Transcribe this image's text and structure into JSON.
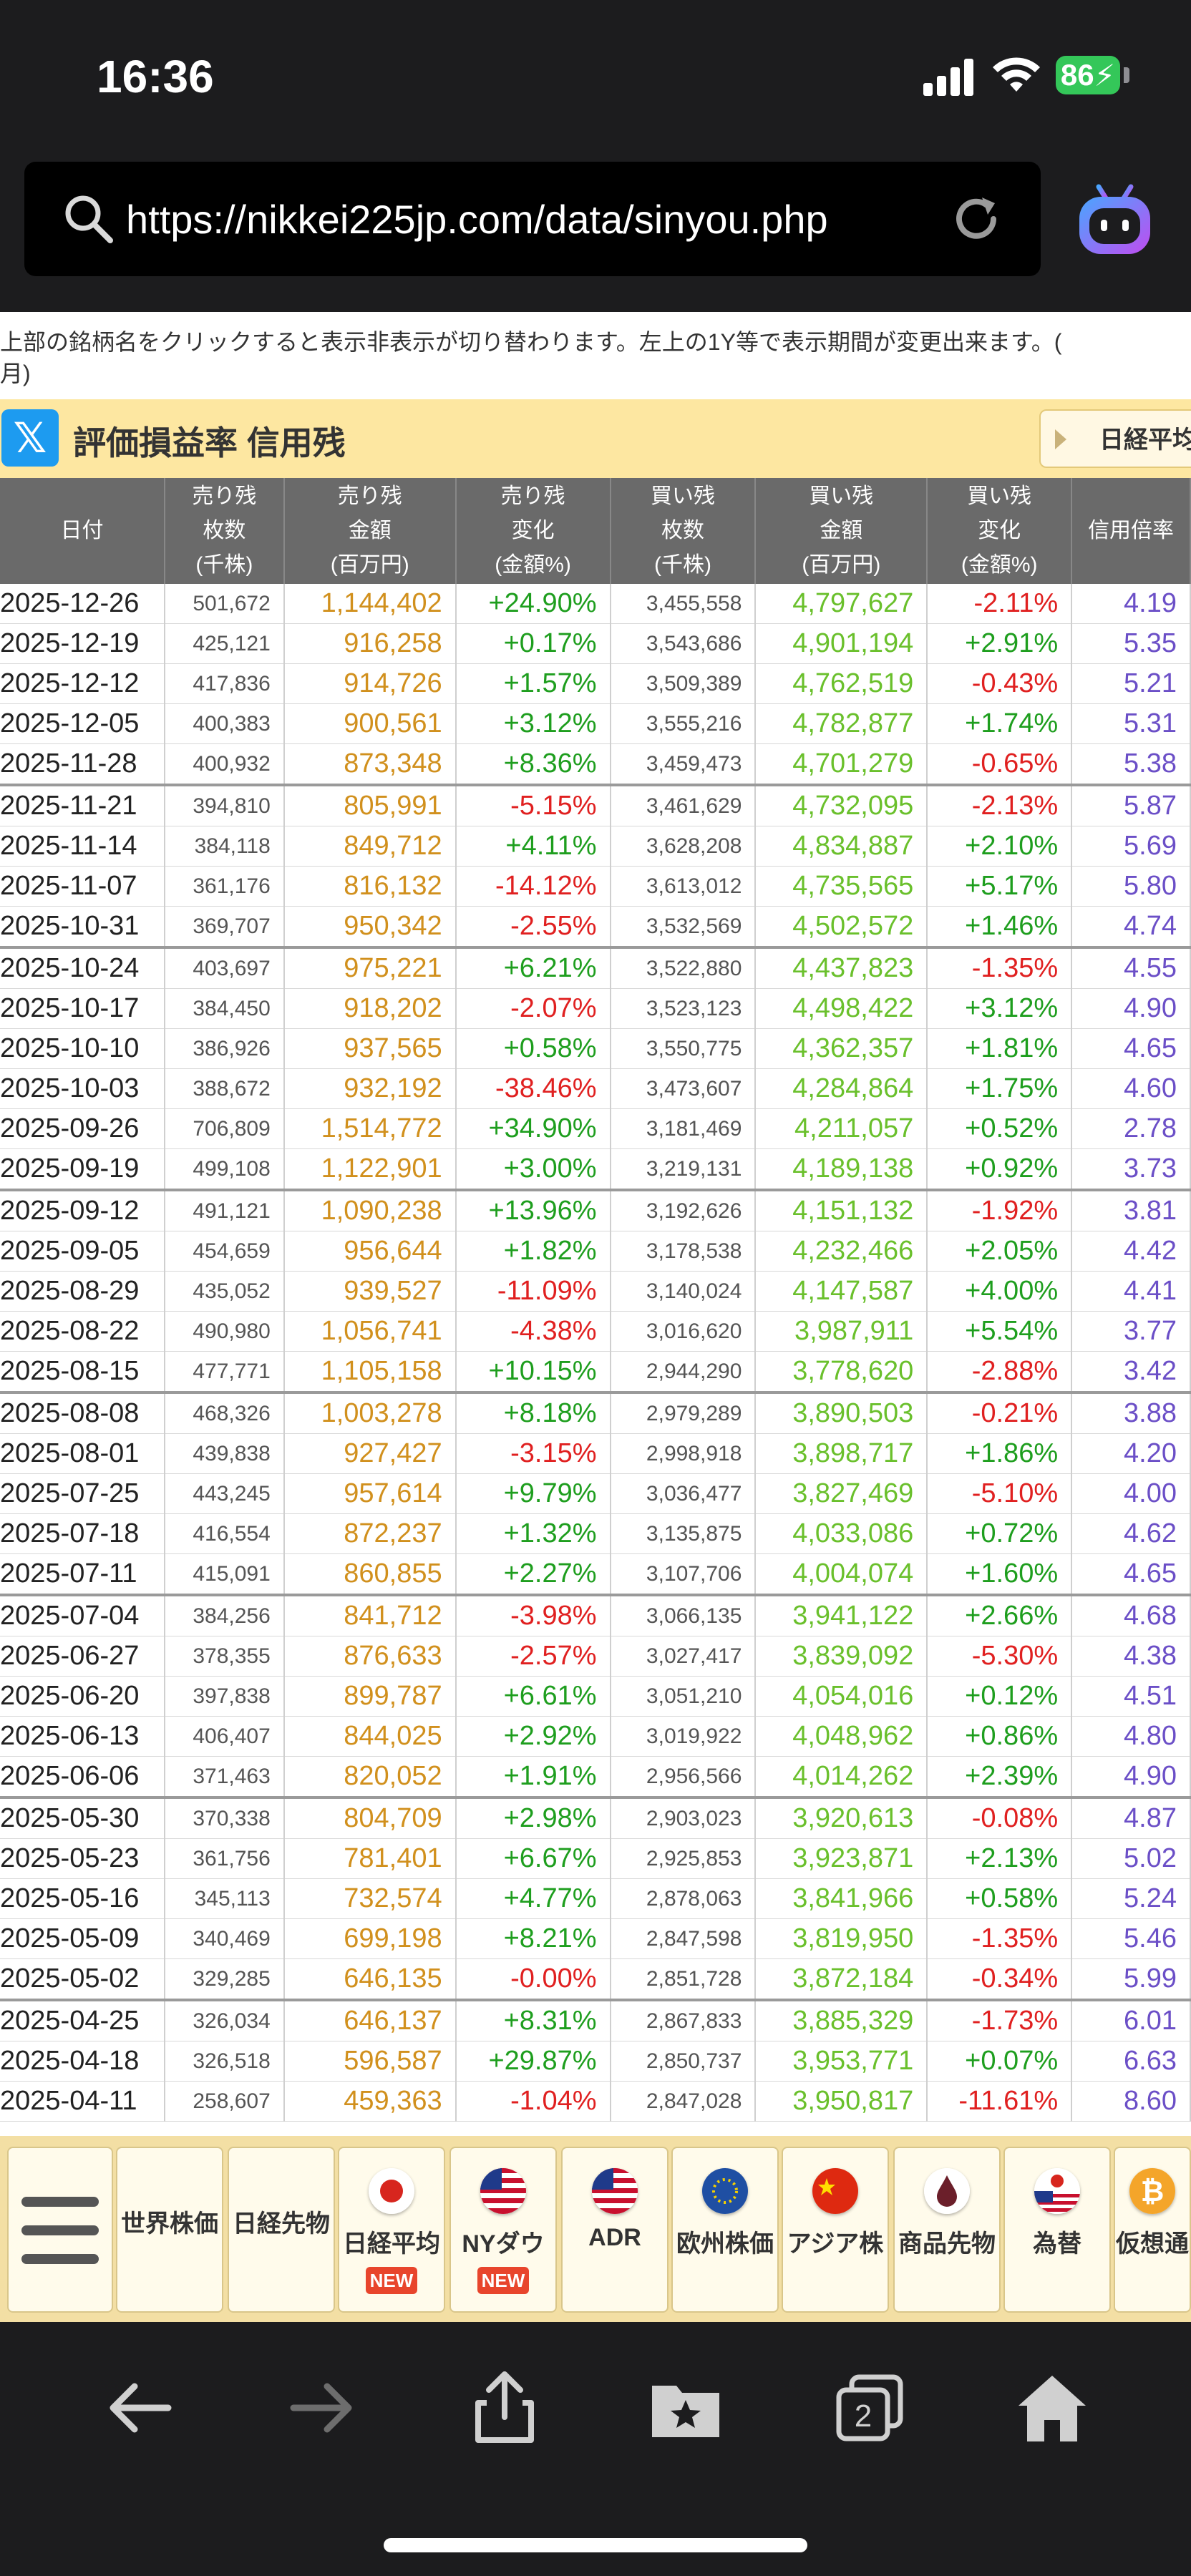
{
  "status": {
    "time": "16:36",
    "battery": "86"
  },
  "browser": {
    "url": "https://nikkei225jp.com/data/sinyou.php"
  },
  "notice": "上部の銘柄名をクリックすると表示非表示が切り替わります。左上の1Y等で表示期間が変更出来ます。(",
  "notice2": "月)",
  "heading": "評価損益率 信用残",
  "tab_label": "日経平均",
  "columns": [
    {
      "l1": "日付",
      "l2": "",
      "l3": ""
    },
    {
      "l1": "売り残",
      "l2": "枚数",
      "l3": "(千株)"
    },
    {
      "l1": "売り残",
      "l2": "金額",
      "l3": "(百万円)"
    },
    {
      "l1": "売り残",
      "l2": "変化",
      "l3": "(金額%)"
    },
    {
      "l1": "買い残",
      "l2": "枚数",
      "l3": "(千株)"
    },
    {
      "l1": "買い残",
      "l2": "金額",
      "l3": "(百万円)"
    },
    {
      "l1": "買い残",
      "l2": "変化",
      "l3": "(金額%)"
    },
    {
      "l1": "信用倍率",
      "l2": "",
      "l3": ""
    }
  ],
  "rows": [
    [
      "2025-12-26",
      "501,672",
      "1,144,402",
      "+24.90%",
      "3,455,558",
      "4,797,627",
      "-2.11%",
      "4.19"
    ],
    [
      "2025-12-19",
      "425,121",
      "916,258",
      "+0.17%",
      "3,543,686",
      "4,901,194",
      "+2.91%",
      "5.35"
    ],
    [
      "2025-12-12",
      "417,836",
      "914,726",
      "+1.57%",
      "3,509,389",
      "4,762,519",
      "-0.43%",
      "5.21"
    ],
    [
      "2025-12-05",
      "400,383",
      "900,561",
      "+3.12%",
      "3,555,216",
      "4,782,877",
      "+1.74%",
      "5.31"
    ],
    [
      "2025-11-28",
      "400,932",
      "873,348",
      "+8.36%",
      "3,459,473",
      "4,701,279",
      "-0.65%",
      "5.38"
    ],
    [
      "2025-11-21",
      "394,810",
      "805,991",
      "-5.15%",
      "3,461,629",
      "4,732,095",
      "-2.13%",
      "5.87"
    ],
    [
      "2025-11-14",
      "384,118",
      "849,712",
      "+4.11%",
      "3,628,208",
      "4,834,887",
      "+2.10%",
      "5.69"
    ],
    [
      "2025-11-07",
      "361,176",
      "816,132",
      "-14.12%",
      "3,613,012",
      "4,735,565",
      "+5.17%",
      "5.80"
    ],
    [
      "2025-10-31",
      "369,707",
      "950,342",
      "-2.55%",
      "3,532,569",
      "4,502,572",
      "+1.46%",
      "4.74"
    ],
    [
      "2025-10-24",
      "403,697",
      "975,221",
      "+6.21%",
      "3,522,880",
      "4,437,823",
      "-1.35%",
      "4.55"
    ],
    [
      "2025-10-17",
      "384,450",
      "918,202",
      "-2.07%",
      "3,523,123",
      "4,498,422",
      "+3.12%",
      "4.90"
    ],
    [
      "2025-10-10",
      "386,926",
      "937,565",
      "+0.58%",
      "3,550,775",
      "4,362,357",
      "+1.81%",
      "4.65"
    ],
    [
      "2025-10-03",
      "388,672",
      "932,192",
      "-38.46%",
      "3,473,607",
      "4,284,864",
      "+1.75%",
      "4.60"
    ],
    [
      "2025-09-26",
      "706,809",
      "1,514,772",
      "+34.90%",
      "3,181,469",
      "4,211,057",
      "+0.52%",
      "2.78"
    ],
    [
      "2025-09-19",
      "499,108",
      "1,122,901",
      "+3.00%",
      "3,219,131",
      "4,189,138",
      "+0.92%",
      "3.73"
    ],
    [
      "2025-09-12",
      "491,121",
      "1,090,238",
      "+13.96%",
      "3,192,626",
      "4,151,132",
      "-1.92%",
      "3.81"
    ],
    [
      "2025-09-05",
      "454,659",
      "956,644",
      "+1.82%",
      "3,178,538",
      "4,232,466",
      "+2.05%",
      "4.42"
    ],
    [
      "2025-08-29",
      "435,052",
      "939,527",
      "-11.09%",
      "3,140,024",
      "4,147,587",
      "+4.00%",
      "4.41"
    ],
    [
      "2025-08-22",
      "490,980",
      "1,056,741",
      "-4.38%",
      "3,016,620",
      "3,987,911",
      "+5.54%",
      "3.77"
    ],
    [
      "2025-08-15",
      "477,771",
      "1,105,158",
      "+10.15%",
      "2,944,290",
      "3,778,620",
      "-2.88%",
      "3.42"
    ],
    [
      "2025-08-08",
      "468,326",
      "1,003,278",
      "+8.18%",
      "2,979,289",
      "3,890,503",
      "-0.21%",
      "3.88"
    ],
    [
      "2025-08-01",
      "439,838",
      "927,427",
      "-3.15%",
      "2,998,918",
      "3,898,717",
      "+1.86%",
      "4.20"
    ],
    [
      "2025-07-25",
      "443,245",
      "957,614",
      "+9.79%",
      "3,036,477",
      "3,827,469",
      "-5.10%",
      "4.00"
    ],
    [
      "2025-07-18",
      "416,554",
      "872,237",
      "+1.32%",
      "3,135,875",
      "4,033,086",
      "+0.72%",
      "4.62"
    ],
    [
      "2025-07-11",
      "415,091",
      "860,855",
      "+2.27%",
      "3,107,706",
      "4,004,074",
      "+1.60%",
      "4.65"
    ],
    [
      "2025-07-04",
      "384,256",
      "841,712",
      "-3.98%",
      "3,066,135",
      "3,941,122",
      "+2.66%",
      "4.68"
    ],
    [
      "2025-06-27",
      "378,355",
      "876,633",
      "-2.57%",
      "3,027,417",
      "3,839,092",
      "-5.30%",
      "4.38"
    ],
    [
      "2025-06-20",
      "397,838",
      "899,787",
      "+6.61%",
      "3,051,210",
      "4,054,016",
      "+0.12%",
      "4.51"
    ],
    [
      "2025-06-13",
      "406,407",
      "844,025",
      "+2.92%",
      "3,019,922",
      "4,048,962",
      "+0.86%",
      "4.80"
    ],
    [
      "2025-06-06",
      "371,463",
      "820,052",
      "+1.91%",
      "2,956,566",
      "4,014,262",
      "+2.39%",
      "4.90"
    ],
    [
      "2025-05-30",
      "370,338",
      "804,709",
      "+2.98%",
      "2,903,023",
      "3,920,613",
      "-0.08%",
      "4.87"
    ],
    [
      "2025-05-23",
      "361,756",
      "781,401",
      "+6.67%",
      "2,925,853",
      "3,923,871",
      "+2.13%",
      "5.02"
    ],
    [
      "2025-05-16",
      "345,113",
      "732,574",
      "+4.77%",
      "2,878,063",
      "3,841,966",
      "+0.58%",
      "5.24"
    ],
    [
      "2025-05-09",
      "340,469",
      "699,198",
      "+8.21%",
      "2,847,598",
      "3,819,950",
      "-1.35%",
      "5.46"
    ],
    [
      "2025-05-02",
      "329,285",
      "646,135",
      "-0.00%",
      "2,851,728",
      "3,872,184",
      "-0.34%",
      "5.99"
    ],
    [
      "2025-04-25",
      "326,034",
      "646,137",
      "+8.31%",
      "2,867,833",
      "3,885,329",
      "-1.73%",
      "6.01"
    ],
    [
      "2025-04-18",
      "326,518",
      "596,587",
      "+29.87%",
      "2,850,737",
      "3,953,771",
      "+0.07%",
      "6.63"
    ],
    [
      "2025-04-11",
      "258,607",
      "459,363",
      "-1.04%",
      "2,847,028",
      "3,950,817",
      "-11.61%",
      "8.60"
    ]
  ],
  "month_end_rows": [
    4,
    8,
    14,
    19,
    24,
    29,
    34
  ],
  "nav": [
    {
      "label": "世界株価",
      "icon": "",
      "new": false
    },
    {
      "label": "日経先物",
      "icon": "",
      "new": false
    },
    {
      "label": "日経平均",
      "icon": "japan-flag-icon",
      "new": true
    },
    {
      "label": "NYダウ",
      "icon": "us-flag-icon",
      "new": true
    },
    {
      "label": "ADR",
      "icon": "us-flag-icon",
      "new": false
    },
    {
      "label": "欧州株価",
      "icon": "eu-flag-icon",
      "new": false
    },
    {
      "label": "アジア株",
      "icon": "china-flag-icon",
      "new": false
    },
    {
      "label": "商品先物",
      "icon": "oil-drop-icon",
      "new": false
    },
    {
      "label": "為替",
      "icon": "jp-us-flag-icon",
      "new": false
    },
    {
      "label": "仮想通",
      "icon": "bitcoin-icon",
      "new": false
    }
  ],
  "new_label": "NEW",
  "colors": {
    "accent_band": "#fde7a1",
    "sell": "#d1901d",
    "buy": "#6ac02c",
    "positive": "#1e9e1e",
    "negative": "#e02020",
    "ratio": "#6b4fc7"
  },
  "tab_count": "2"
}
